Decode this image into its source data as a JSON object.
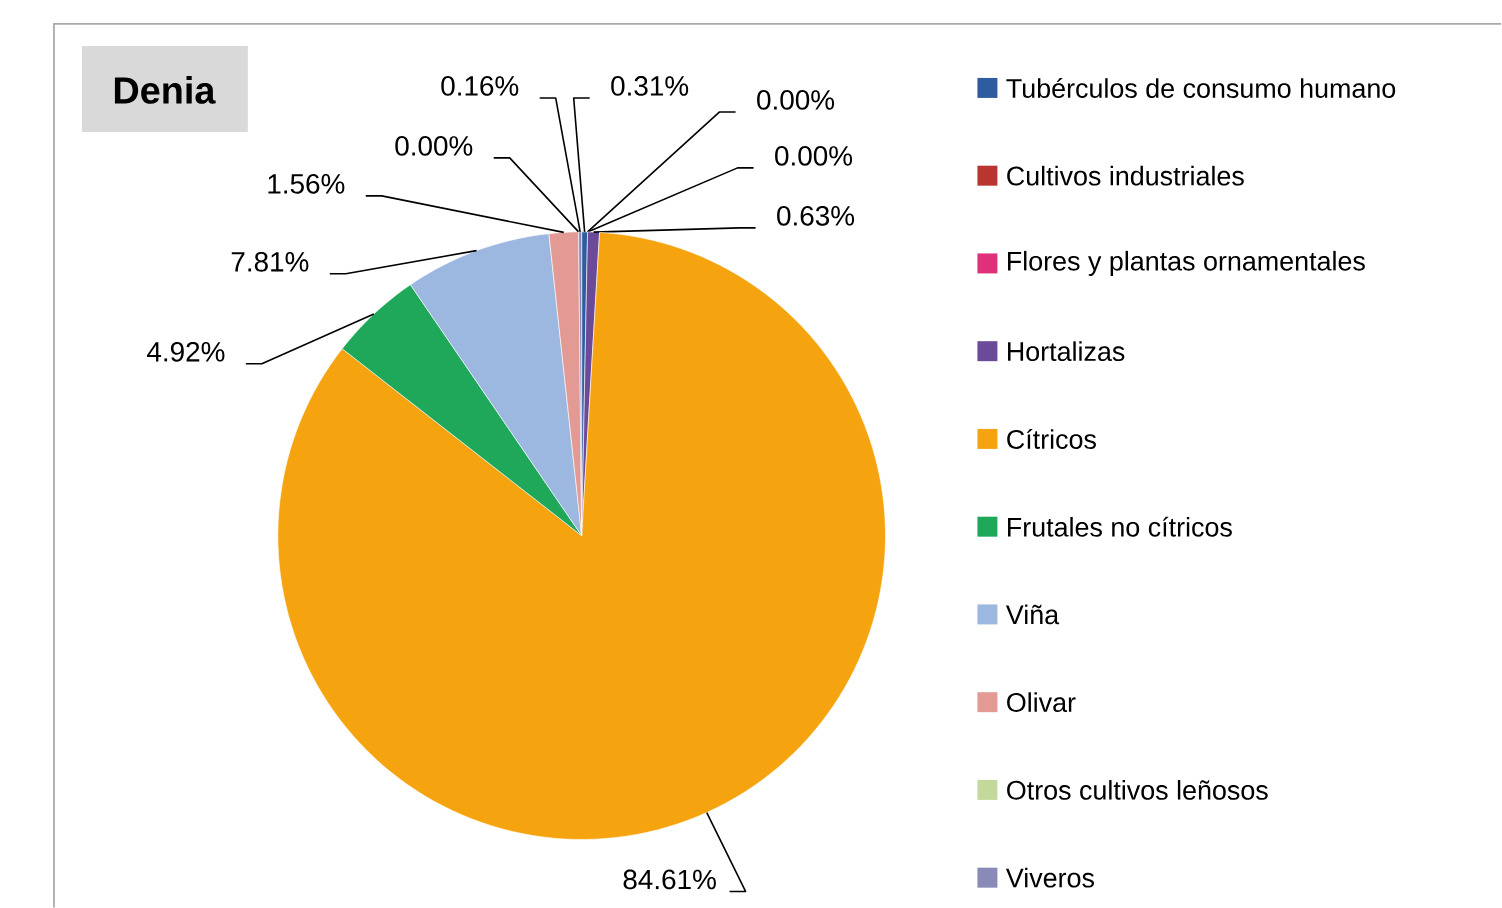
{
  "chart_data": {
    "type": "pie",
    "title": "Denia",
    "categories": [
      "Tubérculos de consumo humano",
      "Cultivos industriales",
      "Flores y plantas ornamentales",
      "Hortalizas",
      "Cítricos",
      "Frutales no cítricos",
      "Viña",
      "Olivar",
      "Otros cultivos leñosos",
      "Viveros"
    ],
    "values": [
      0.31,
      0.0,
      0.0,
      0.63,
      84.61,
      4.92,
      7.81,
      1.56,
      0.0,
      0.16
    ],
    "value_labels": [
      "0.31%",
      "0.00%",
      "0.00%",
      "0.63%",
      "84.61%",
      "4.92%",
      "7.81%",
      "1.56%",
      "0.00%",
      "0.16%"
    ],
    "colors": [
      "#2e5c9e",
      "#b8362f",
      "#e0307a",
      "#6b4a9a",
      "#f5a30f",
      "#1fa85a",
      "#9db8e0",
      "#e39a94",
      "#c5d89c",
      "#8a8ab8"
    ],
    "legend": "right"
  }
}
